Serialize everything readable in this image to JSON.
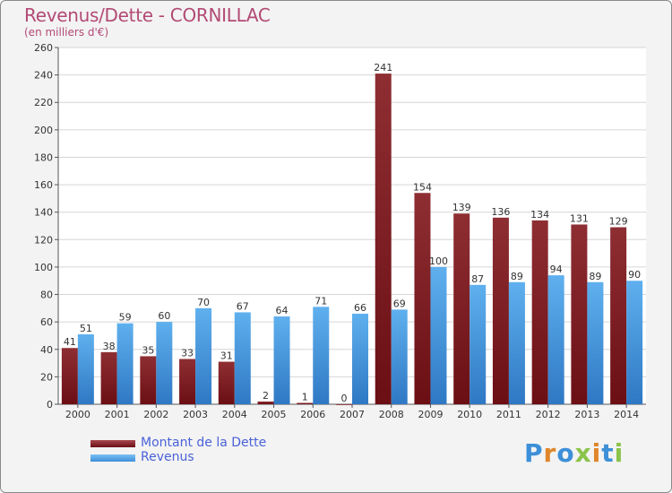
{
  "title": "Revenus/Dette - CORNILLAC",
  "subtitle": "(en milliers d'€)",
  "logo_text": "Proxiti",
  "colors": {
    "dette": "#6b0f14",
    "revenus": "#3d8fd8",
    "title": "#b24a74",
    "legend_text": "#4a62d8"
  },
  "legend": {
    "dette_label": "Montant de la Dette",
    "revenus_label": "Revenus"
  },
  "chart_data": {
    "type": "bar",
    "title": "Revenus/Dette - CORNILLAC",
    "subtitle": "(en milliers d'€)",
    "xlabel": "",
    "ylabel": "",
    "ylim": [
      0,
      260
    ],
    "yticks": [
      0,
      20,
      40,
      60,
      80,
      100,
      120,
      140,
      160,
      180,
      200,
      220,
      240,
      260
    ],
    "grid": true,
    "legend_position": "bottom-left",
    "categories": [
      "2000",
      "2001",
      "2002",
      "2003",
      "2004",
      "2005",
      "2006",
      "2007",
      "2008",
      "2009",
      "2010",
      "2011",
      "2012",
      "2013",
      "2014"
    ],
    "series": [
      {
        "name": "Montant de la Dette",
        "values": [
          41,
          38,
          35,
          33,
          31,
          2,
          1,
          0,
          241,
          154,
          139,
          136,
          134,
          131,
          129
        ]
      },
      {
        "name": "Revenus",
        "values": [
          51,
          59,
          60,
          70,
          67,
          64,
          71,
          66,
          69,
          100,
          87,
          89,
          94,
          89,
          90
        ]
      }
    ]
  }
}
